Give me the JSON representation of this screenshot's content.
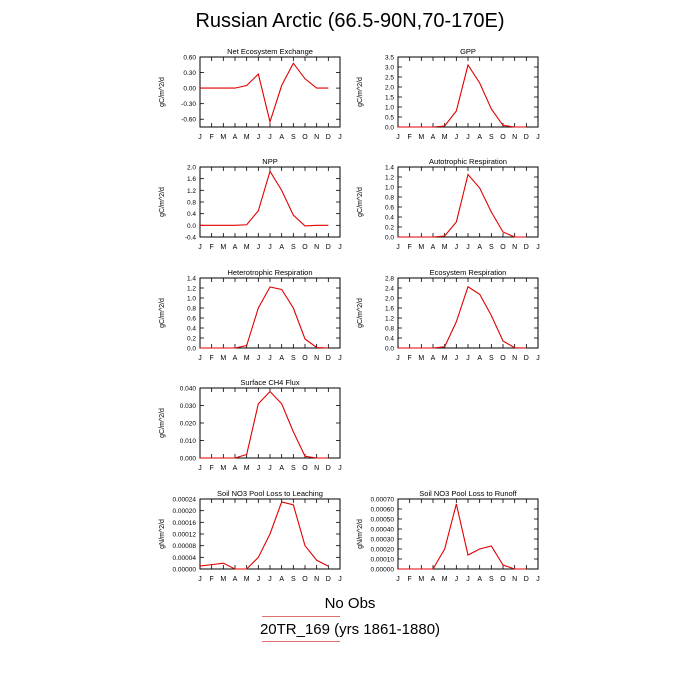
{
  "figure": {
    "title": "Russian Arctic (66.5-90N,70-170E)",
    "legend": {
      "line1": "No Obs",
      "line2": "20TR_169 (yrs 1861-1880)",
      "line_color": "#e07070"
    },
    "series_color": "#e00000"
  },
  "chart_data": [
    {
      "type": "line",
      "title": "Net Ecosystem Exchange",
      "ylabel": "gC/m^2/d",
      "categories": [
        "J",
        "F",
        "M",
        "A",
        "M",
        "J",
        "J",
        "A",
        "S",
        "O",
        "N",
        "D",
        "J"
      ],
      "x": [
        1,
        2,
        3,
        4,
        5,
        6,
        7,
        8,
        9,
        10,
        11,
        12
      ],
      "y": [
        0.0,
        0.0,
        0.0,
        0.0,
        0.05,
        0.27,
        -0.65,
        0.05,
        0.48,
        0.18,
        0.0,
        0.0
      ],
      "ylim": [
        -0.75,
        0.6
      ],
      "yticks": [
        "0.60",
        "0.30",
        "0.00",
        "-0.30",
        "-0.60"
      ],
      "ytick_values": [
        0.6,
        0.3,
        0.0,
        -0.3,
        -0.6
      ],
      "grid": false
    },
    {
      "type": "line",
      "title": "GPP",
      "ylabel": "gC/m^2/d",
      "categories": [
        "J",
        "F",
        "M",
        "A",
        "M",
        "J",
        "J",
        "A",
        "S",
        "O",
        "N",
        "D",
        "J"
      ],
      "x": [
        1,
        2,
        3,
        4,
        5,
        6,
        7,
        8,
        9,
        10,
        11,
        12
      ],
      "y": [
        0.0,
        0.0,
        0.0,
        0.0,
        0.05,
        0.8,
        3.1,
        2.2,
        0.9,
        0.08,
        0.0,
        0.0
      ],
      "ylim": [
        0,
        3.5
      ],
      "yticks": [
        "0.0",
        "0.5",
        "1.0",
        "1.5",
        "2.0",
        "2.5",
        "3.0",
        "3.5"
      ],
      "ytick_values": [
        0,
        0.5,
        1.0,
        1.5,
        2.0,
        2.5,
        3.0,
        3.5
      ],
      "grid": false
    },
    {
      "type": "line",
      "title": "NPP",
      "ylabel": "gC/m^2/d",
      "categories": [
        "J",
        "F",
        "M",
        "A",
        "M",
        "J",
        "J",
        "A",
        "S",
        "O",
        "N",
        "D",
        "J"
      ],
      "x": [
        1,
        2,
        3,
        4,
        5,
        6,
        7,
        8,
        9,
        10,
        11,
        12
      ],
      "y": [
        0.0,
        0.0,
        0.0,
        0.0,
        0.02,
        0.5,
        1.85,
        1.2,
        0.35,
        -0.02,
        0.0,
        0.0
      ],
      "ylim": [
        -0.4,
        2.0
      ],
      "yticks": [
        "2.0",
        "1.6",
        "1.2",
        "0.8",
        "0.4",
        "0.0",
        "-0.4"
      ],
      "ytick_values": [
        2.0,
        1.6,
        1.2,
        0.8,
        0.4,
        0.0,
        -0.4
      ],
      "grid": false
    },
    {
      "type": "line",
      "title": "Autotrophic Respiration",
      "ylabel": "gC/m^2/d",
      "categories": [
        "J",
        "F",
        "M",
        "A",
        "M",
        "J",
        "J",
        "A",
        "S",
        "O",
        "N",
        "D",
        "J"
      ],
      "x": [
        1,
        2,
        3,
        4,
        5,
        6,
        7,
        8,
        9,
        10,
        11,
        12
      ],
      "y": [
        0.0,
        0.0,
        0.0,
        0.0,
        0.02,
        0.3,
        1.25,
        0.98,
        0.5,
        0.1,
        0.0,
        0.0
      ],
      "ylim": [
        0,
        1.4
      ],
      "yticks": [
        "1.4",
        "1.2",
        "1.0",
        "0.8",
        "0.6",
        "0.4",
        "0.2",
        "0.0"
      ],
      "ytick_values": [
        1.4,
        1.2,
        1.0,
        0.8,
        0.6,
        0.4,
        0.2,
        0.0
      ],
      "grid": false
    },
    {
      "type": "line",
      "title": "Heterotrophic Respiration",
      "ylabel": "gC/m^2/d",
      "categories": [
        "J",
        "F",
        "M",
        "A",
        "M",
        "J",
        "J",
        "A",
        "S",
        "O",
        "N",
        "D",
        "J"
      ],
      "x": [
        1,
        2,
        3,
        4,
        5,
        6,
        7,
        8,
        9,
        10,
        11,
        12
      ],
      "y": [
        0.0,
        0.0,
        0.0,
        0.0,
        0.05,
        0.8,
        1.22,
        1.17,
        0.8,
        0.18,
        0.01,
        0.0
      ],
      "ylim": [
        0,
        1.4
      ],
      "yticks": [
        "1.4",
        "1.2",
        "1.0",
        "0.8",
        "0.6",
        "0.4",
        "0.2",
        "0.0"
      ],
      "ytick_values": [
        1.4,
        1.2,
        1.0,
        0.8,
        0.6,
        0.4,
        0.2,
        0.0
      ],
      "grid": false
    },
    {
      "type": "line",
      "title": "Ecosystem Respiration",
      "ylabel": "gC/m^2/d",
      "categories": [
        "J",
        "F",
        "M",
        "A",
        "M",
        "J",
        "J",
        "A",
        "S",
        "O",
        "N",
        "D",
        "J"
      ],
      "x": [
        1,
        2,
        3,
        4,
        5,
        6,
        7,
        8,
        9,
        10,
        11,
        12
      ],
      "y": [
        0.0,
        0.0,
        0.0,
        0.0,
        0.05,
        1.05,
        2.45,
        2.15,
        1.3,
        0.28,
        0.01,
        0.0
      ],
      "ylim": [
        0,
        2.8
      ],
      "yticks": [
        "2.8",
        "2.4",
        "2.0",
        "1.6",
        "1.2",
        "0.8",
        "0.4",
        "0.0"
      ],
      "ytick_values": [
        2.8,
        2.4,
        2.0,
        1.6,
        1.2,
        0.8,
        0.4,
        0.0
      ],
      "grid": false
    },
    {
      "type": "line",
      "title": "Surface CH4 Flux",
      "ylabel": "gC/m^2/d",
      "categories": [
        "J",
        "F",
        "M",
        "A",
        "M",
        "J",
        "J",
        "A",
        "S",
        "O",
        "N",
        "D",
        "J"
      ],
      "x": [
        1,
        2,
        3,
        4,
        5,
        6,
        7,
        8,
        9,
        10,
        11,
        12
      ],
      "y": [
        0.0,
        0.0,
        0.0,
        0.0,
        0.002,
        0.031,
        0.038,
        0.031,
        0.015,
        0.001,
        0.0,
        0.0
      ],
      "ylim": [
        0,
        0.04
      ],
      "yticks": [
        "0.040",
        "0.030",
        "0.020",
        "0.010",
        "0.000"
      ],
      "ytick_values": [
        0.04,
        0.03,
        0.02,
        0.01,
        0.0
      ],
      "grid": false
    },
    {
      "type": "line",
      "title": "Soil NO3 Pool Loss to Leaching",
      "ylabel": "gN/m^2/d",
      "categories": [
        "J",
        "F",
        "M",
        "A",
        "M",
        "J",
        "J",
        "A",
        "S",
        "O",
        "N",
        "D",
        "J"
      ],
      "x": [
        1,
        2,
        3,
        4,
        5,
        6,
        7,
        8,
        9,
        10,
        11,
        12
      ],
      "y": [
        1e-05,
        1.5e-05,
        2e-05,
        0.0,
        0.0,
        4e-05,
        0.00012,
        0.00023,
        0.00022,
        8e-05,
        3e-05,
        1e-05
      ],
      "ylim": [
        0,
        0.00024
      ],
      "yticks": [
        "0.00024",
        "0.00020",
        "0.00016",
        "0.00012",
        "0.00008",
        "0.00004",
        "0.00000"
      ],
      "ytick_values": [
        0.00024,
        0.0002,
        0.00016,
        0.00012,
        8e-05,
        4e-05,
        0.0
      ],
      "grid": false
    },
    {
      "type": "line",
      "title": "Soil NO3 Pool Loss to Runoff",
      "ylabel": "gN/m^2/d",
      "categories": [
        "J",
        "F",
        "M",
        "A",
        "M",
        "J",
        "J",
        "A",
        "S",
        "O",
        "N",
        "D",
        "J"
      ],
      "x": [
        1,
        2,
        3,
        4,
        5,
        6,
        7,
        8,
        9,
        10,
        11,
        12
      ],
      "y": [
        0.0,
        0.0,
        0.0,
        0.0,
        0.0002,
        0.00065,
        0.00014,
        0.0002,
        0.00023,
        4e-05,
        0.0,
        0.0
      ],
      "ylim": [
        0,
        0.0007
      ],
      "yticks": [
        "0.00070",
        "0.00060",
        "0.00050",
        "0.00040",
        "0.00030",
        "0.00020",
        "0.00010",
        "0.00000"
      ],
      "ytick_values": [
        0.0007,
        0.0006,
        0.0005,
        0.0004,
        0.0003,
        0.0002,
        0.0001,
        0.0
      ],
      "grid": false
    }
  ]
}
